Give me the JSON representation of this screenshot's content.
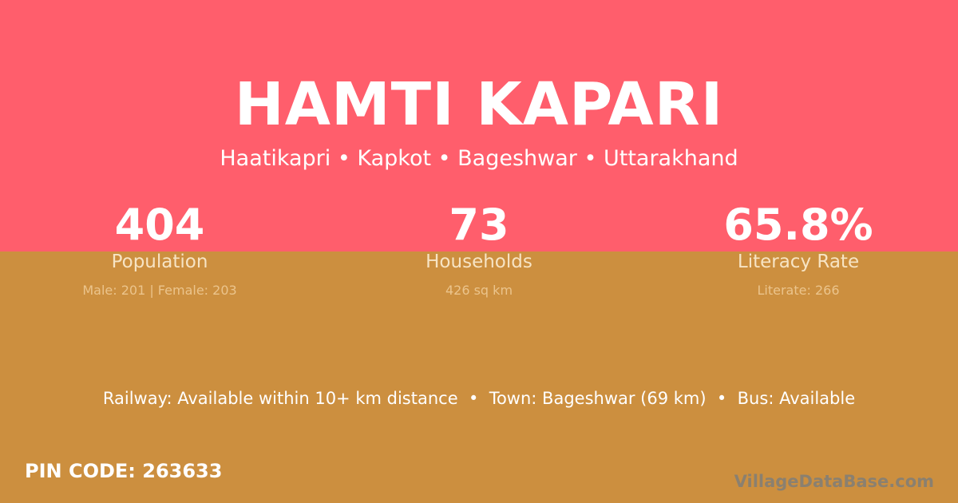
{
  "colors": {
    "top_bg": "#ff5e6c",
    "bottom_bg": "#cc8f3f"
  },
  "title": "HAMTI KAPARI",
  "subtitle": "Haatikapri • Kapkot • Bageshwar • Uttarakhand",
  "stats": [
    {
      "value": "404",
      "label": "Population",
      "detail": "Male: 201 | Female: 203"
    },
    {
      "value": "73",
      "label": "Households",
      "detail": "426 sq km"
    },
    {
      "value": "65.8%",
      "label": "Literacy Rate",
      "detail": "Literate: 266"
    }
  ],
  "info": "Railway: Available within 10+ km distance  •  Town: Bageshwar (69 km)  •  Bus: Available",
  "pin": "PIN CODE: 263633",
  "brand": "VillageDataBase.com"
}
